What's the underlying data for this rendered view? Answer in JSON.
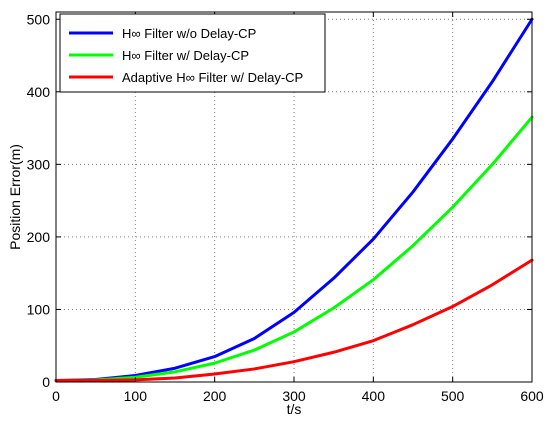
{
  "chart_data": {
    "type": "line",
    "title": "",
    "xlabel": "t/s",
    "ylabel": "Position Error(m)",
    "xlim": [
      0,
      600
    ],
    "ylim": [
      0,
      510
    ],
    "xticks": [
      0,
      100,
      200,
      300,
      400,
      500,
      600
    ],
    "yticks": [
      0,
      100,
      200,
      300,
      400,
      500
    ],
    "grid": true,
    "legend_position": "top-left",
    "series": [
      {
        "name": "H∞ Filter w/o Delay-CP",
        "color": "#0000ff",
        "x": [
          0,
          50,
          100,
          150,
          200,
          250,
          300,
          350,
          400,
          450,
          500,
          550,
          600
        ],
        "y": [
          2,
          3.4,
          9,
          19,
          35,
          60,
          96,
          143,
          197,
          262,
          335,
          414,
          500
        ]
      },
      {
        "name": "H∞ Filter w/ Delay-CP",
        "color": "#00ff00",
        "x": [
          0,
          50,
          100,
          150,
          200,
          250,
          300,
          350,
          400,
          450,
          500,
          550,
          600
        ],
        "y": [
          2,
          2.8,
          6.5,
          14,
          26,
          44,
          69,
          102,
          141,
          188,
          241,
          300,
          365
        ]
      },
      {
        "name": "Adaptive H∞ Filter w/ Delay-CP",
        "color": "#ff0000",
        "x": [
          0,
          50,
          100,
          150,
          200,
          250,
          300,
          350,
          400,
          450,
          500,
          550,
          600
        ],
        "y": [
          2,
          2.1,
          3,
          5.5,
          11,
          18,
          28,
          41,
          57,
          79,
          104,
          134,
          168
        ]
      }
    ]
  }
}
